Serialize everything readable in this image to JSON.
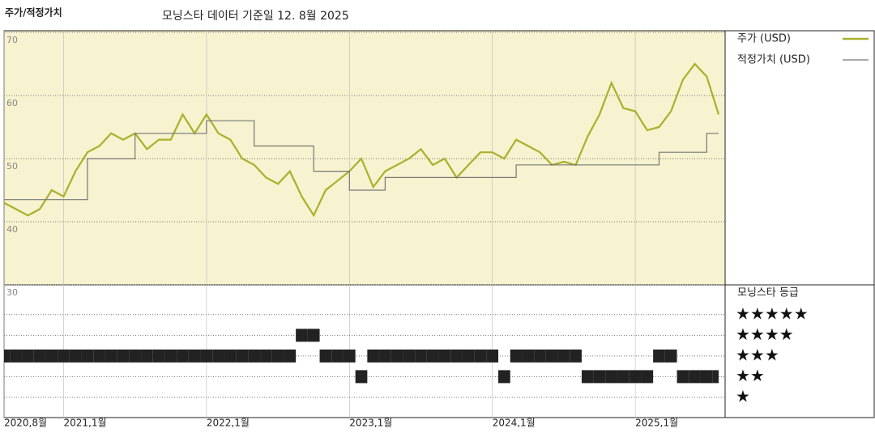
{
  "chart_data": [
    {
      "type": "line",
      "title": "주가/적정가치",
      "subtitle": "모닝스타 데이터 기준일 12. 8월 2025",
      "x": [
        "2020-08",
        "2020-09",
        "2020-10",
        "2020-11",
        "2020-12",
        "2021-01",
        "2021-02",
        "2021-03",
        "2021-04",
        "2021-05",
        "2021-06",
        "2021-07",
        "2021-08",
        "2021-09",
        "2021-10",
        "2021-11",
        "2021-12",
        "2022-01",
        "2022-02",
        "2022-03",
        "2022-04",
        "2022-05",
        "2022-06",
        "2022-07",
        "2022-08",
        "2022-09",
        "2022-10",
        "2022-11",
        "2022-12",
        "2023-01",
        "2023-02",
        "2023-03",
        "2023-04",
        "2023-05",
        "2023-06",
        "2023-07",
        "2023-08",
        "2023-09",
        "2023-10",
        "2023-11",
        "2023-12",
        "2024-01",
        "2024-02",
        "2024-03",
        "2024-04",
        "2024-05",
        "2024-06",
        "2024-07",
        "2024-08",
        "2024-09",
        "2024-10",
        "2024-11",
        "2024-12",
        "2025-01",
        "2025-02",
        "2025-03",
        "2025-04",
        "2025-05",
        "2025-06",
        "2025-07",
        "2025-08"
      ],
      "series": [
        {
          "name": "주가 (USD)",
          "color": "#a9b02c",
          "values": [
            43,
            42,
            41,
            42,
            45,
            44,
            48,
            51,
            52,
            54,
            53,
            54,
            51.5,
            53,
            53,
            57,
            54,
            57,
            54,
            53,
            50,
            49,
            47,
            46,
            48,
            44,
            41,
            45,
            46.5,
            48,
            50,
            45.5,
            48,
            49,
            50,
            51.5,
            49,
            50,
            47,
            49,
            51,
            51,
            50,
            53,
            52,
            51,
            49,
            49.5,
            49,
            53.5,
            57,
            62,
            58,
            57.5,
            54.5,
            55,
            57.5,
            62.5,
            65,
            63,
            57
          ]
        },
        {
          "name": "적정가치 (USD)",
          "color": "#777777",
          "step": true,
          "values": [
            43.5,
            43.5,
            43.5,
            43.5,
            43.5,
            43.5,
            43.5,
            50,
            50,
            50,
            50,
            54,
            54,
            54,
            54,
            54,
            54,
            56,
            56,
            56,
            56,
            52,
            52,
            52,
            52,
            52,
            48,
            48,
            48,
            45,
            45,
            45,
            47,
            47,
            47,
            47,
            47,
            47,
            47,
            47,
            47,
            47,
            47,
            49,
            49,
            49,
            49,
            49,
            49,
            49,
            49,
            49,
            49,
            49,
            49,
            51,
            51,
            51,
            51,
            54,
            54
          ]
        }
      ],
      "ylim": [
        30,
        70
      ],
      "yticks": [
        30,
        40,
        50,
        60,
        70
      ],
      "grid": true,
      "xticks": [
        {
          "value": "2020-08",
          "label": "2020,8월"
        },
        {
          "value": "2021-01",
          "label": "2021,1월"
        },
        {
          "value": "2022-01",
          "label": "2022,1월"
        },
        {
          "value": "2023-01",
          "label": "2023,1월"
        },
        {
          "value": "2024-01",
          "label": "2024,1월"
        },
        {
          "value": "2025-01",
          "label": "2025,1월"
        }
      ]
    },
    {
      "type": "band",
      "title": "모닝스타 등급",
      "x": [
        "2020-08",
        "2020-09",
        "2020-10",
        "2020-11",
        "2020-12",
        "2021-01",
        "2021-02",
        "2021-03",
        "2021-04",
        "2021-05",
        "2021-06",
        "2021-07",
        "2021-08",
        "2021-09",
        "2021-10",
        "2021-11",
        "2021-12",
        "2022-01",
        "2022-02",
        "2022-03",
        "2022-04",
        "2022-05",
        "2022-06",
        "2022-07",
        "2022-08",
        "2022-09",
        "2022-10",
        "2022-11",
        "2022-12",
        "2023-01",
        "2023-02",
        "2023-03",
        "2023-04",
        "2023-05",
        "2023-06",
        "2023-07",
        "2023-08",
        "2023-09",
        "2023-10",
        "2023-11",
        "2023-12",
        "2024-01",
        "2024-02",
        "2024-03",
        "2024-04",
        "2024-05",
        "2024-06",
        "2024-07",
        "2024-08",
        "2024-09",
        "2024-10",
        "2024-11",
        "2024-12",
        "2025-01",
        "2025-02",
        "2025-03",
        "2025-04",
        "2025-05",
        "2025-06",
        "2025-07",
        "2025-08"
      ],
      "values": [
        3,
        3,
        3,
        3,
        3,
        3,
        3,
        3,
        3,
        3,
        3,
        3,
        3,
        3,
        3,
        3,
        3,
        3,
        3,
        3,
        3,
        3,
        3,
        3,
        3,
        4,
        4,
        3,
        3,
        3,
        2,
        3,
        3,
        3,
        3,
        3,
        3,
        3,
        3,
        3,
        3,
        3,
        2,
        3,
        3,
        3,
        3,
        3,
        3,
        2,
        2,
        2,
        2,
        2,
        2,
        3,
        3,
        2,
        2,
        2,
        2
      ],
      "color": "#222222",
      "ylim": [
        0,
        6.4
      ],
      "yticks": [
        {
          "value": 5,
          "label": "★★★★★"
        },
        {
          "value": 4,
          "label": "★★★★"
        },
        {
          "value": 3,
          "label": "★★★"
        },
        {
          "value": 2,
          "label": "★★"
        },
        {
          "value": 1,
          "label": "★"
        }
      ]
    }
  ]
}
